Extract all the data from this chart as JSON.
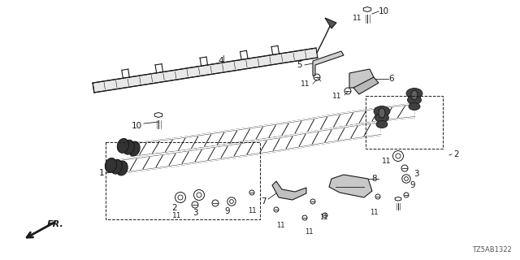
{
  "bg_color": "#ffffff",
  "line_color": "#2a2a2a",
  "figsize": [
    6.4,
    3.2
  ],
  "dpi": 100,
  "watermark": "TZ5AB1322"
}
